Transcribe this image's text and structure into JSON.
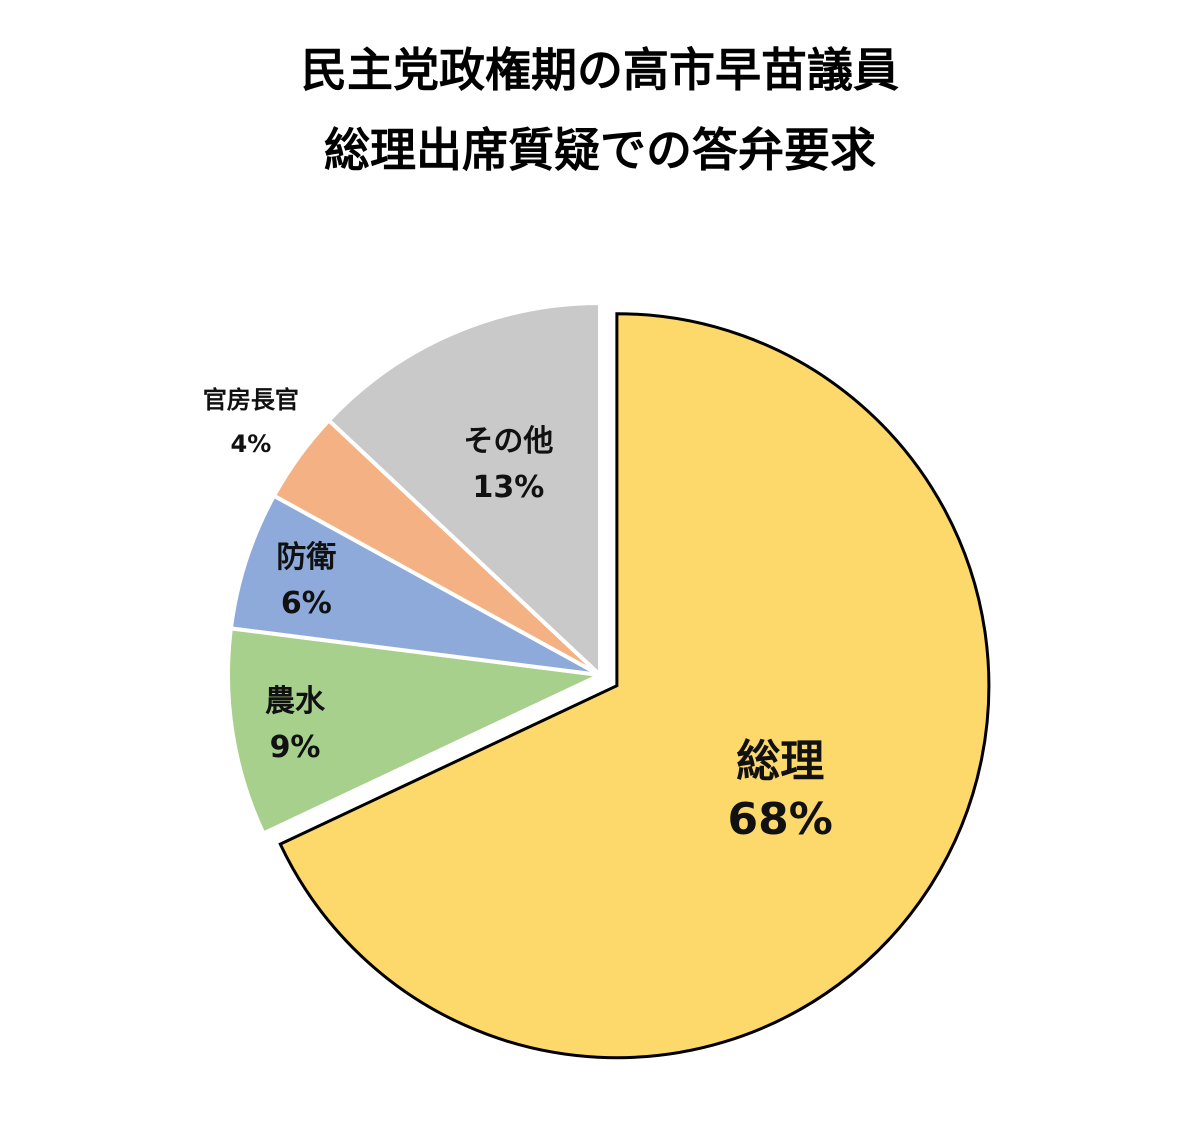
{
  "chart_data": {
    "type": "pie",
    "title": [
      "民主党政権期の高市早苗議員",
      "総理出席質疑での答弁要求"
    ],
    "slices": [
      {
        "name": "総理",
        "value": 68,
        "label": "68%",
        "color": "#FDD86A",
        "exploded": true
      },
      {
        "name": "農水",
        "value": 9,
        "label": "9%",
        "color": "#A8D08D",
        "exploded": false
      },
      {
        "name": "防衛",
        "value": 6,
        "label": "6%",
        "color": "#8EAADB",
        "exploded": false
      },
      {
        "name": "官房長官",
        "value": 4,
        "label": "4%",
        "color": "#F4B183",
        "exploded": false
      },
      {
        "name": "その他",
        "value": 13,
        "label": "13%",
        "color": "#C9C9C9",
        "exploded": false
      }
    ],
    "start_angle": "12 o'clock",
    "direction": "clockwise",
    "legend": "none"
  }
}
